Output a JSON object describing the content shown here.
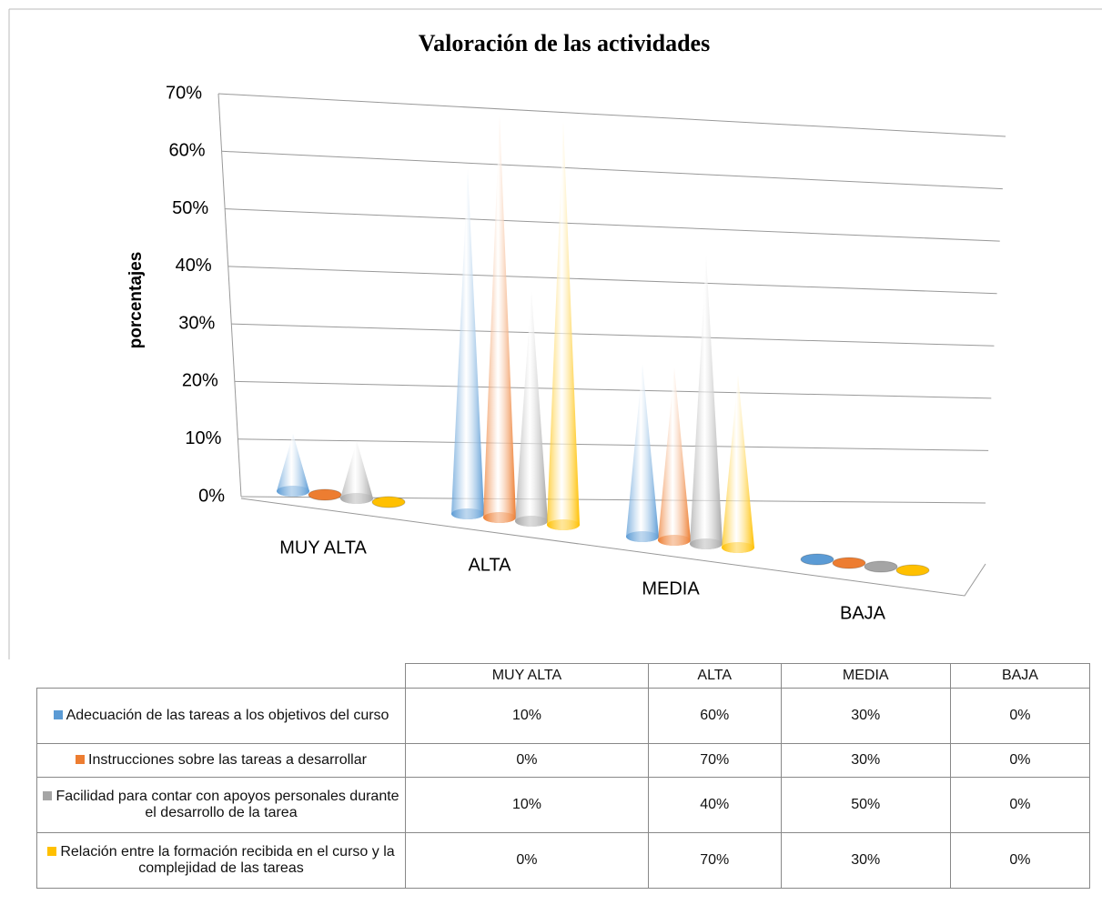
{
  "chart_data": {
    "type": "cone3d",
    "title": "Valoración de las actividades",
    "y_label": "porcentajes",
    "categories": [
      "MUY ALTA",
      "ALTA",
      "MEDIA",
      "BAJA"
    ],
    "series": [
      {
        "name": "Adecuación de las tareas a los objetivos del curso",
        "color": "#5b9bd5",
        "values": [
          10,
          60,
          30,
          0
        ],
        "value_labels": [
          "10%",
          "60%",
          "30%",
          "0%"
        ]
      },
      {
        "name": "Instrucciones sobre las tareas a desarrollar",
        "color": "#ed7d31",
        "values": [
          0,
          70,
          30,
          0
        ],
        "value_labels": [
          "0%",
          "70%",
          "30%",
          "0%"
        ]
      },
      {
        "name": "Facilidad para contar con apoyos personales durante el desarrollo de la tarea",
        "color": "#a5a5a5",
        "values": [
          10,
          40,
          50,
          0
        ],
        "value_labels": [
          "10%",
          "40%",
          "50%",
          "0%"
        ]
      },
      {
        "name": "Relación entre la formación recibida en el curso y la complejidad de las tareas",
        "color": "#ffc000",
        "values": [
          0,
          70,
          30,
          0
        ],
        "value_labels": [
          "0%",
          "70%",
          "30%",
          "0%"
        ]
      }
    ],
    "ylim": [
      0,
      70
    ],
    "yticks": [
      {
        "value": 0,
        "label": "0%"
      },
      {
        "value": 10,
        "label": "10%"
      },
      {
        "value": 20,
        "label": "20%"
      },
      {
        "value": 30,
        "label": "30%"
      },
      {
        "value": 40,
        "label": "40%"
      },
      {
        "value": 50,
        "label": "50%"
      },
      {
        "value": 60,
        "label": "60%"
      },
      {
        "value": 70,
        "label": "70%"
      }
    ],
    "grid": true
  }
}
